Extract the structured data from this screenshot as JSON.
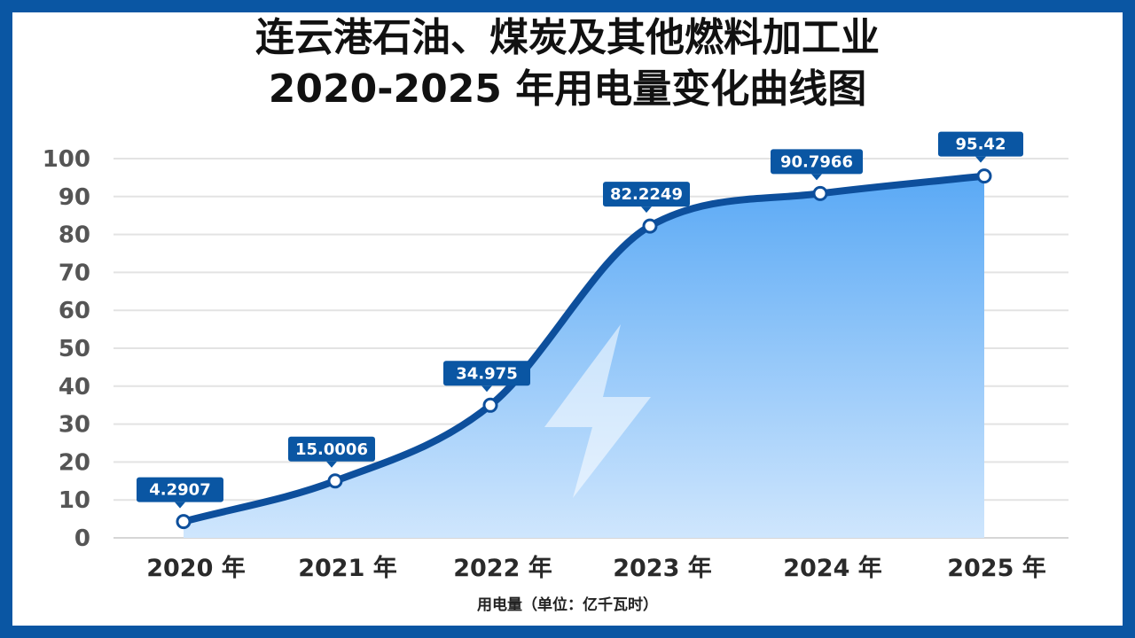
{
  "chart_data": {
    "type": "area",
    "title_line1": "连云港石油、煤炭及其他燃料加工业",
    "title_line2": "2020-2025 年用电量变化曲线图",
    "xlabel": "用电量（单位：亿千瓦时）",
    "ylabel": "",
    "categories": [
      "2020 年",
      "2021 年",
      "2022 年",
      "2023 年",
      "2024 年",
      "2025 年"
    ],
    "values": [
      4.2907,
      15.0006,
      34.975,
      82.2249,
      90.7966,
      95.42
    ],
    "data_labels": [
      "4.2907",
      "15.0006",
      "34.975",
      "82.2249",
      "90.7966",
      "95.42"
    ],
    "y_ticks": [
      "0",
      "10",
      "20",
      "30",
      "40",
      "50",
      "60",
      "70",
      "80",
      "90",
      "100"
    ],
    "ylim": [
      0,
      100
    ],
    "grid": true,
    "legend": "none",
    "colors": {
      "line": "#0d4f9c",
      "area_top": "#5aa9f5",
      "area_bottom": "#cfe6fd",
      "label_bg": "#0a56a3",
      "border": "#0a56a3",
      "grid": "#e3e3e3"
    },
    "watermark_icon": "lightning-bolt-icon"
  }
}
